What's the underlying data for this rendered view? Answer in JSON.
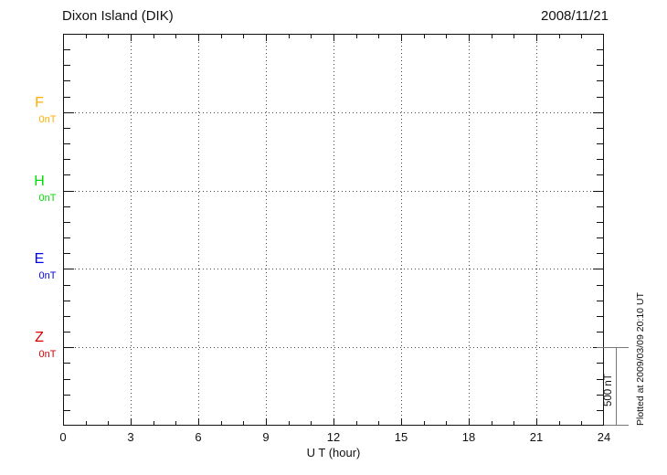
{
  "header": {
    "title": "Dixon Island (DIK)",
    "date": "2008/11/21"
  },
  "chart_data": {
    "type": "line",
    "title": "Dixon Island (DIK)",
    "date": "2008/11/21",
    "xlabel": "U T (hour)",
    "x_range": [
      0,
      24
    ],
    "x_ticks": [
      0,
      3,
      6,
      9,
      12,
      15,
      18,
      21,
      24
    ],
    "x_minor_step_hours": 1,
    "grid": "dotted",
    "components": [
      {
        "label": "F",
        "unit_label": "0nT",
        "color": "#FFAE00",
        "baseline_nT": 0
      },
      {
        "label": "H",
        "unit_label": "0nT",
        "color": "#00DD00",
        "baseline_nT": 0
      },
      {
        "label": "E",
        "unit_label": "0nT",
        "color": "#0000EE",
        "baseline_nT": 0
      },
      {
        "label": "Z",
        "unit_label": "0nT",
        "color": "#DD0000",
        "baseline_nT": 0
      }
    ],
    "series": [],
    "series_note": "no data traces plotted; chart area is empty",
    "scale_bar": {
      "label": "500 nT",
      "value_nT": 500
    },
    "footnote": "Plotted at 2009/03/09 20:10 UT"
  }
}
